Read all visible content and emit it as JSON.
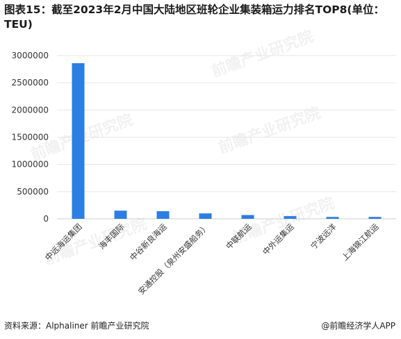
{
  "title": "图表15：截至2023年2月中国大陆地区班轮企业集装箱运力排名TOP8(单位：TEU)",
  "footer": {
    "source": "资料来源：Alphaliner 前瞻产业研究院",
    "credit": "@前瞻经济学人APP"
  },
  "watermark": "前瞻产业研究院",
  "colors": {
    "bar": "#2e7de1",
    "grid": "#e6e6e6",
    "axis": "#cccccc"
  },
  "chart_data": {
    "type": "bar",
    "title": "图表15：截至2023年2月中国大陆地区班轮企业集装箱运力排名TOP8(单位：TEU)",
    "categories": [
      "中远海运集团",
      "海丰国际",
      "中谷新良海运",
      "安通控股（泉州安盛船务）",
      "中联航运",
      "中外运集运",
      "宁波远洋",
      "上海锦江航运"
    ],
    "values": [
      2860000,
      150000,
      140000,
      100000,
      70000,
      50000,
      35000,
      35000
    ],
    "y_ticks": [
      "0",
      "500000",
      "1000000",
      "1500000",
      "2000000",
      "2500000",
      "3000000"
    ],
    "ylim": [
      0,
      3000000
    ],
    "xlabel": "",
    "ylabel": "",
    "grid": true
  }
}
